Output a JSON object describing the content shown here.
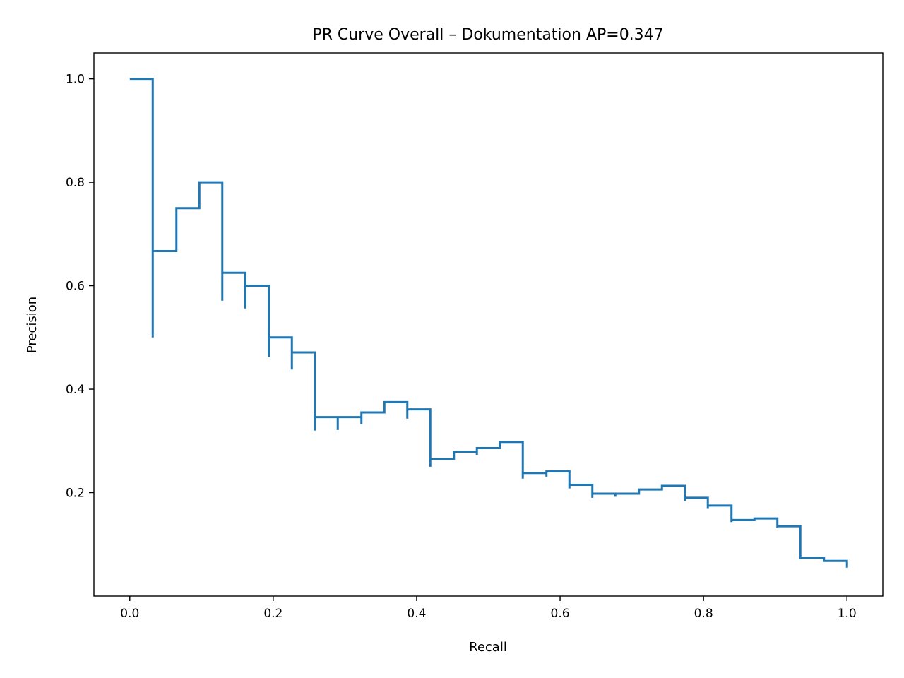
{
  "chart_data": {
    "type": "line",
    "title": "PR Curve Overall – Dokumentation  AP=0.347",
    "xlabel": "Recall",
    "ylabel": "Precision",
    "xlim": [
      -0.05,
      1.05
    ],
    "ylim": [
      0.0,
      1.05
    ],
    "grid": false,
    "xticks": [
      "0.0",
      "0.2",
      "0.4",
      "0.6",
      "0.8",
      "1.0"
    ],
    "yticks": [
      "0.2",
      "0.4",
      "0.6",
      "0.8",
      "1.0"
    ],
    "line_color": "#1f77b4",
    "series": [
      {
        "style": "step-post",
        "points": [
          [
            0.0,
            1.0
          ],
          [
            0.032,
            1.0
          ],
          [
            0.032,
            0.5
          ],
          [
            0.032,
            0.667
          ],
          [
            0.065,
            0.667
          ],
          [
            0.065,
            0.75
          ],
          [
            0.097,
            0.75
          ],
          [
            0.097,
            0.8
          ],
          [
            0.129,
            0.8
          ],
          [
            0.129,
            0.571
          ],
          [
            0.129,
            0.625
          ],
          [
            0.161,
            0.625
          ],
          [
            0.161,
            0.556
          ],
          [
            0.161,
            0.6
          ],
          [
            0.194,
            0.6
          ],
          [
            0.194,
            0.462
          ],
          [
            0.194,
            0.5
          ],
          [
            0.226,
            0.5
          ],
          [
            0.226,
            0.438
          ],
          [
            0.226,
            0.471
          ],
          [
            0.258,
            0.471
          ],
          [
            0.258,
            0.32
          ],
          [
            0.258,
            0.346
          ],
          [
            0.29,
            0.346
          ],
          [
            0.29,
            0.321
          ],
          [
            0.29,
            0.346
          ],
          [
            0.323,
            0.346
          ],
          [
            0.323,
            0.333
          ],
          [
            0.323,
            0.355
          ],
          [
            0.355,
            0.355
          ],
          [
            0.355,
            0.375
          ],
          [
            0.387,
            0.375
          ],
          [
            0.387,
            0.343
          ],
          [
            0.387,
            0.361
          ],
          [
            0.419,
            0.361
          ],
          [
            0.419,
            0.25
          ],
          [
            0.419,
            0.265
          ],
          [
            0.452,
            0.265
          ],
          [
            0.452,
            0.279
          ],
          [
            0.484,
            0.279
          ],
          [
            0.484,
            0.273
          ],
          [
            0.484,
            0.286
          ],
          [
            0.516,
            0.286
          ],
          [
            0.516,
            0.298
          ],
          [
            0.548,
            0.298
          ],
          [
            0.548,
            0.227
          ],
          [
            0.548,
            0.238
          ],
          [
            0.581,
            0.238
          ],
          [
            0.581,
            0.231
          ],
          [
            0.581,
            0.241
          ],
          [
            0.613,
            0.241
          ],
          [
            0.613,
            0.208
          ],
          [
            0.613,
            0.215
          ],
          [
            0.645,
            0.215
          ],
          [
            0.645,
            0.19
          ],
          [
            0.645,
            0.198
          ],
          [
            0.677,
            0.198
          ],
          [
            0.677,
            0.192
          ],
          [
            0.677,
            0.198
          ],
          [
            0.71,
            0.198
          ],
          [
            0.71,
            0.206
          ],
          [
            0.742,
            0.206
          ],
          [
            0.742,
            0.213
          ],
          [
            0.774,
            0.213
          ],
          [
            0.774,
            0.184
          ],
          [
            0.774,
            0.19
          ],
          [
            0.806,
            0.19
          ],
          [
            0.806,
            0.17
          ],
          [
            0.806,
            0.175
          ],
          [
            0.839,
            0.175
          ],
          [
            0.839,
            0.143
          ],
          [
            0.839,
            0.147
          ],
          [
            0.871,
            0.147
          ],
          [
            0.871,
            0.145
          ],
          [
            0.871,
            0.15
          ],
          [
            0.903,
            0.15
          ],
          [
            0.903,
            0.131
          ],
          [
            0.903,
            0.135
          ],
          [
            0.935,
            0.135
          ],
          [
            0.935,
            0.071
          ],
          [
            0.935,
            0.074
          ],
          [
            0.968,
            0.074
          ],
          [
            0.968,
            0.066
          ],
          [
            0.968,
            0.068
          ],
          [
            1.0,
            0.068
          ],
          [
            1.0,
            0.055
          ]
        ]
      }
    ]
  }
}
